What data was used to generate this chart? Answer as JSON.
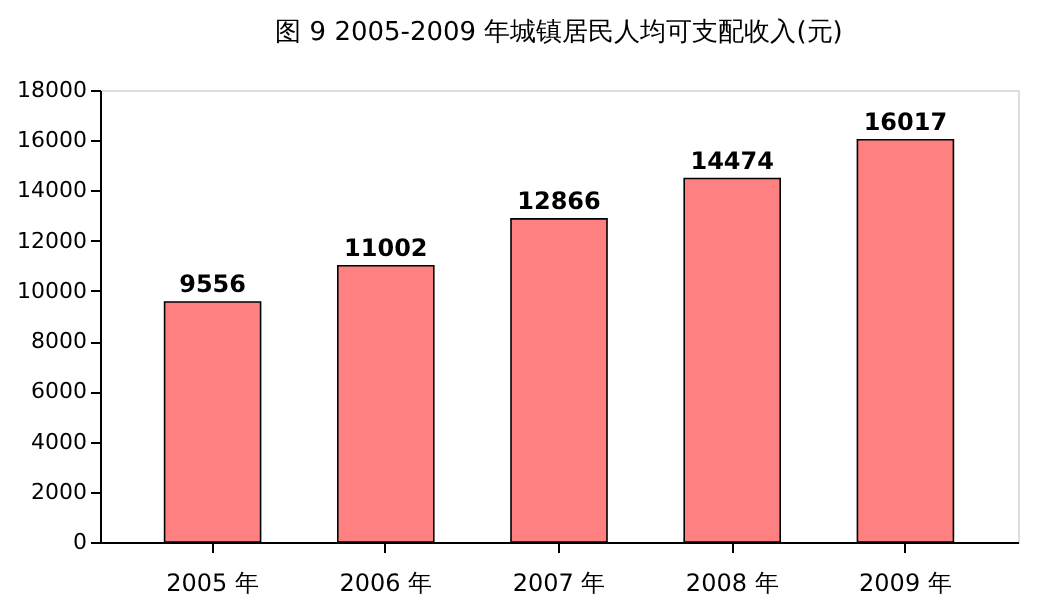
{
  "chart_data": {
    "type": "bar",
    "title": "图 9        2005-2009 年城镇居民人均可支配收入(元)",
    "categories": [
      "2005 年",
      "2006 年",
      "2007 年",
      "2008 年",
      "2009 年"
    ],
    "values": [
      9556,
      11002,
      12866,
      14474,
      16017
    ],
    "color": "#ff8080",
    "ylim": [
      0,
      18000
    ],
    "yticks": [
      0,
      2000,
      4000,
      6000,
      8000,
      10000,
      12000,
      14000,
      16000,
      18000
    ],
    "grid": false,
    "data_labels": true
  }
}
